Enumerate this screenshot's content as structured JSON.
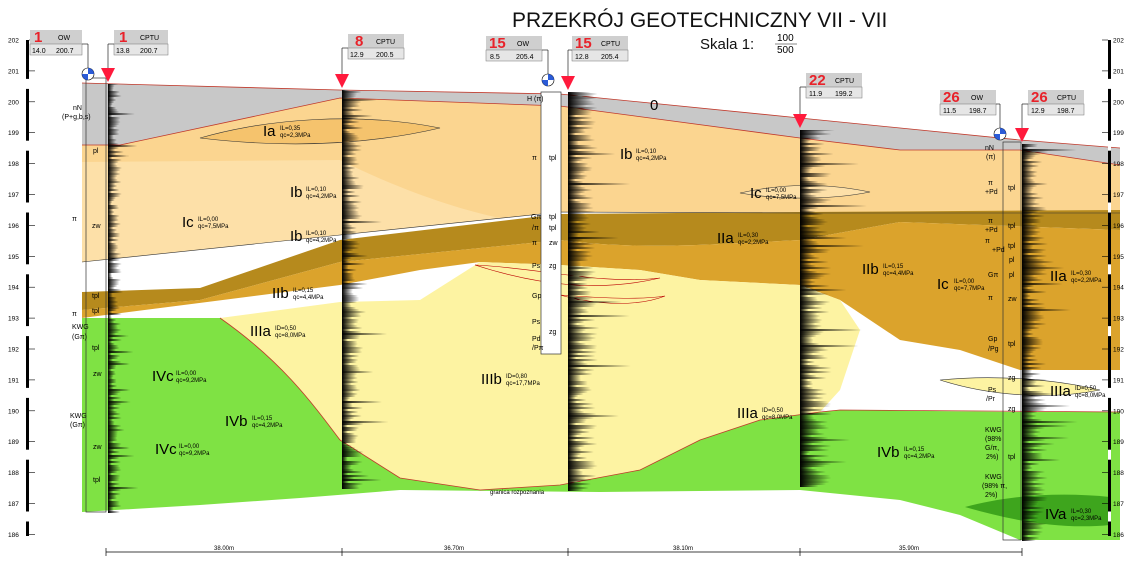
{
  "title": "PRZEKRÓJ GEOTECHNICZNY  VII - VII",
  "scale": {
    "label": "Skala 1:",
    "numerator": "100",
    "denominator": "500"
  },
  "elevation_ticks": [
    "202",
    "201",
    "200",
    "199",
    "198",
    "197",
    "196",
    "195",
    "194",
    "193",
    "192",
    "191",
    "190",
    "189",
    "188",
    "187",
    "186"
  ],
  "boreholes": [
    {
      "no": "1",
      "type": "OW",
      "depth": "14.0",
      "elev": "200.7"
    },
    {
      "no": "1",
      "type": "CPTU",
      "depth": "13.8",
      "elev": "200.7"
    },
    {
      "no": "8",
      "type": "CPTU",
      "depth": "12.9",
      "elev": "200.5"
    },
    {
      "no": "15",
      "type": "OW",
      "depth": "8.5",
      "elev": "205.4"
    },
    {
      "no": "15",
      "type": "CPTU",
      "depth": "12.8",
      "elev": "205.4"
    },
    {
      "no": "22",
      "type": "CPTU",
      "depth": "11.9",
      "elev": "199.2"
    },
    {
      "no": "26",
      "type": "OW",
      "depth": "11.5",
      "elev": "198.7"
    },
    {
      "no": "26",
      "type": "CPTU",
      "depth": "12.9",
      "elev": "198.7"
    }
  ],
  "distances": [
    "38.00m",
    "36.70m",
    "38.10m",
    "35.90m"
  ],
  "layers": [
    {
      "name": "0",
      "param1": "",
      "param2": ""
    },
    {
      "name": "Ia",
      "param1": "IL=0,35",
      "param2": "qc=2,3MPa"
    },
    {
      "name": "Ib",
      "param1": "IL=0,10",
      "param2": "qc=4,2MPa"
    },
    {
      "name": "Ib",
      "param1": "IL=0,10",
      "param2": "qc=4,2MPa"
    },
    {
      "name": "Ib",
      "param1": "IL=0,10",
      "param2": "qc=4,2MPa"
    },
    {
      "name": "Ic",
      "param1": "IL=0,00",
      "param2": "qc=7,5MPa"
    },
    {
      "name": "Ic",
      "param1": "IL=0,00",
      "param2": "qc=7,5MPa"
    },
    {
      "name": "Ic",
      "param1": "IL=0,00",
      "param2": "qc=7,7MPa"
    },
    {
      "name": "IIa",
      "param1": "IL=0,30",
      "param2": "qc=2,2MPa"
    },
    {
      "name": "IIa",
      "param1": "IL=0,30",
      "param2": "qc=2,2MPa"
    },
    {
      "name": "IIb",
      "param1": "IL=0,15",
      "param2": "qc=4,4MPa"
    },
    {
      "name": "IIb",
      "param1": "IL=0,15",
      "param2": "qc=4,4MPa"
    },
    {
      "name": "IIIa",
      "param1": "ID=0,50",
      "param2": "qc=8,0MPa"
    },
    {
      "name": "IIIa",
      "param1": "ID=0,50",
      "param2": "qc=8,0MPa"
    },
    {
      "name": "IIIa",
      "param1": "ID=0,50",
      "param2": "qc=8,0MPa"
    },
    {
      "name": "IIIb",
      "param1": "ID=0,80",
      "param2": "qc=17,7MPa"
    },
    {
      "name": "IVa",
      "param1": "IL=0,30",
      "param2": "qc=2,3MPa"
    },
    {
      "name": "IVb",
      "param1": "IL=0,15",
      "param2": "qc=4,2MPa"
    },
    {
      "name": "IVb",
      "param1": "IL=0,15",
      "param2": "qc=4,2MPa"
    },
    {
      "name": "IVc",
      "param1": "IL=0,00",
      "param2": "qc=9,2MPa"
    },
    {
      "name": "IVc",
      "param1": "IL=0,00",
      "param2": "qc=9,2MPa"
    }
  ],
  "soil_labels": {
    "bh1": [
      "nN",
      "(P+g,b,s)",
      "pl",
      "π",
      "zw",
      "tpl",
      "π",
      "tpl",
      "KWG",
      "(Gπ)",
      "tpl",
      "zw",
      "KWG",
      "(Gπ)",
      "zw",
      "tpl"
    ],
    "bh15": [
      "H (π)",
      "tpl",
      "π",
      "tpl",
      "Gπ",
      "/π",
      "tpl",
      "π",
      "zw",
      "Ps",
      "zg",
      "Gp",
      "Ps",
      "zg",
      "Pd",
      "/Pπ"
    ],
    "bh26": [
      "nN",
      "(π)",
      "π",
      "+Pd",
      "tpl",
      "π",
      "+Pd",
      "tpl",
      "π",
      "+Pd",
      "tpl",
      "pl",
      "Gπ",
      "pl",
      "π",
      "zw",
      "Gp",
      "/Pg",
      "tpl",
      "zg",
      "Ps",
      "/Pr",
      "zg",
      "KWG",
      "(98%",
      "G/π,",
      "2%)",
      "tpl",
      "KWG",
      "(98% π,",
      "2%)"
    ]
  },
  "boundary_note": "granica rozpoznania",
  "colors": {
    "fill_layer": "#c8c8c8",
    "layer_I": "#fbd590",
    "layer_Ia": "#f5c36d",
    "layer_Ic": "#fde0a8",
    "layer_II": "#b68a1d",
    "layer_IIb": "#dba32c",
    "layer_III": "#fdf3a2",
    "layer_IV": "#7fe244",
    "layer_IVa": "#3ea51d",
    "cpt_red": "#ff1a3c",
    "red_text": "#e8222a",
    "box_gray": "#cfcfcf"
  }
}
